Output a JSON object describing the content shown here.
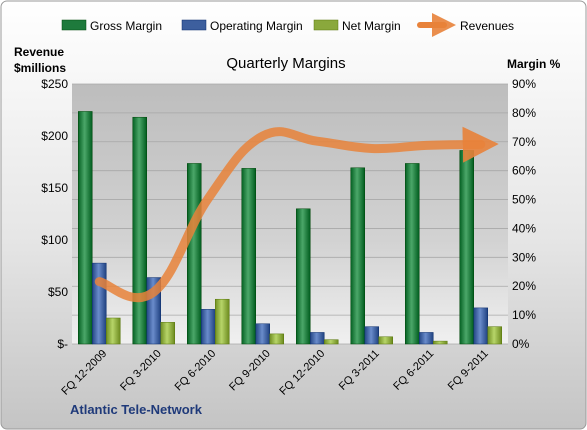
{
  "chart_data": {
    "type": "bar",
    "title": "Quarterly Margins",
    "company": "Atlantic Tele-Network",
    "y_left_label_line1": "Revenue",
    "y_left_label_line2": "$millions",
    "y_right_label": "Margin %",
    "categories": [
      "FQ 12-2009",
      "FQ 3-2010",
      "FQ 6-2010",
      "FQ 9-2010",
      "FQ 12-2010",
      "FQ 3-2011",
      "FQ 6-2011",
      "FQ 9-2011"
    ],
    "left_axis": {
      "min": 0,
      "max": 250,
      "ticks": [
        0,
        50,
        100,
        150,
        200,
        250
      ],
      "tick_labels": [
        "$-",
        "$50",
        "$100",
        "$150",
        "$200",
        "$250"
      ]
    },
    "right_axis": {
      "min": 0,
      "max": 90,
      "ticks": [
        0,
        10,
        20,
        30,
        40,
        50,
        60,
        70,
        80,
        90
      ],
      "tick_labels": [
        "0%",
        "10%",
        "20%",
        "30%",
        "40%",
        "50%",
        "60%",
        "70%",
        "80%",
        "90%"
      ]
    },
    "series": [
      {
        "name": "Gross Margin",
        "axis": "right",
        "kind": "bar",
        "color": "#1e7a3c",
        "values": [
          80.5,
          78.5,
          62.5,
          60.8,
          46.8,
          61.0,
          62.5,
          67.0
        ]
      },
      {
        "name": "Operating Margin",
        "axis": "right",
        "kind": "bar",
        "color": "#3d5f9e",
        "values": [
          28.0,
          23.0,
          12.0,
          7.0,
          4.0,
          6.0,
          4.0,
          12.5
        ]
      },
      {
        "name": "Net Margin",
        "axis": "right",
        "kind": "bar",
        "color": "#8aa83c",
        "values": [
          9.0,
          7.5,
          15.5,
          3.5,
          1.5,
          2.5,
          1.0,
          6.0
        ]
      },
      {
        "name": "Revenues",
        "axis": "left",
        "kind": "line",
        "color": "#e8823a",
        "values": [
          60,
          50,
          140,
          200,
          195,
          188,
          191,
          192
        ]
      }
    ],
    "legend_position": "top",
    "grid": true
  }
}
